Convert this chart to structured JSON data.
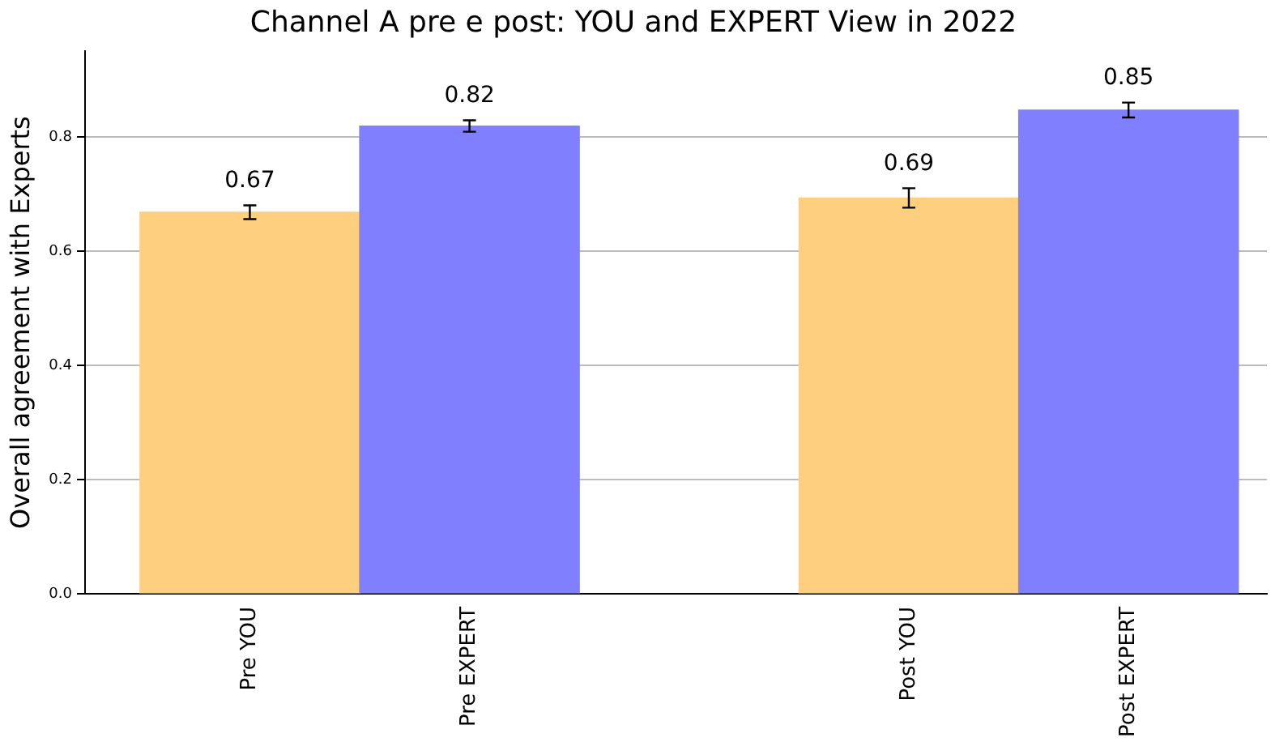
{
  "chart_data": {
    "type": "bar",
    "title": "Channel A pre e post: YOU and EXPERT View in 2022",
    "ylabel": "Overall agreement with Experts",
    "categories": [
      "Pre YOU",
      "Pre EXPERT",
      "Post YOU",
      "Post EXPERT"
    ],
    "values": [
      0.668,
      0.819,
      0.693,
      0.847
    ],
    "colors": [
      "#fecf7f",
      "#8080ff",
      "#fecf7f",
      "#8080ff"
    ],
    "errors": [
      0.012,
      0.01,
      0.017,
      0.013
    ],
    "value_labels": [
      "0.67",
      "0.82",
      "0.69",
      "0.85"
    ],
    "ylim": [
      0,
      0.95
    ],
    "yticks": [
      {
        "value": 0,
        "label": "0.0"
      },
      {
        "value": 0.2,
        "label": "0.2"
      },
      {
        "value": 0.4,
        "label": "0.4"
      },
      {
        "value": 0.6,
        "label": "0.6"
      },
      {
        "value": 0.8,
        "label": "0.8"
      }
    ],
    "grid": "y",
    "legend": false
  }
}
